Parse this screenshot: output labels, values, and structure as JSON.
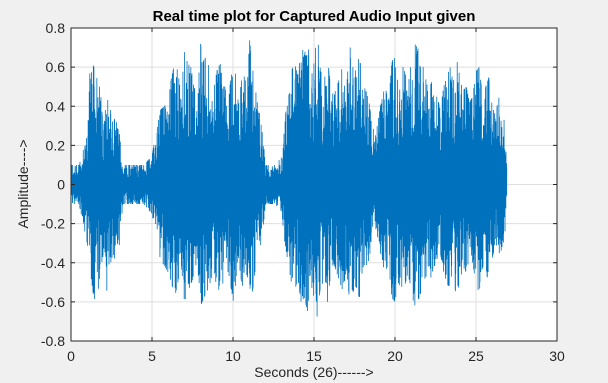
{
  "chart_data": {
    "type": "line",
    "title": "Real time plot for Captured Audio Input given",
    "xlabel": "Seconds (26)------>",
    "ylabel": "Amplitude---->",
    "xlim": [
      0,
      30
    ],
    "ylim": [
      -0.8,
      0.8
    ],
    "x_ticks": [
      0,
      5,
      10,
      15,
      20,
      25,
      30
    ],
    "y_ticks": [
      -0.8,
      -0.6,
      -0.4,
      -0.2,
      0,
      0.2,
      0.4,
      0.6,
      0.8
    ],
    "grid": true,
    "series": [
      {
        "color": "#0072BD",
        "envelope_x": [
          0.0,
          0.5,
          1.0,
          1.2,
          1.4,
          1.6,
          1.8,
          2.0,
          2.2,
          2.4,
          2.6,
          2.8,
          3.0,
          3.2,
          3.5,
          4.0,
          4.5,
          5.0,
          5.5,
          6.0,
          6.2,
          6.4,
          6.6,
          6.8,
          7.0,
          7.2,
          7.4,
          7.6,
          7.8,
          8.0,
          8.2,
          8.4,
          8.6,
          8.8,
          9.0,
          9.2,
          9.4,
          9.6,
          9.8,
          10.0,
          10.2,
          10.4,
          10.6,
          10.8,
          11.0,
          11.2,
          11.5,
          11.8,
          12.0,
          12.3,
          12.6,
          13.0,
          13.2,
          13.4,
          13.6,
          13.8,
          14.0,
          14.2,
          14.4,
          14.6,
          14.8,
          15.0,
          15.2,
          15.4,
          15.6,
          15.8,
          16.0,
          16.2,
          16.4,
          16.6,
          16.8,
          17.0,
          17.2,
          17.4,
          17.6,
          17.8,
          18.0,
          18.2,
          18.4,
          18.6,
          18.8,
          19.0,
          19.2,
          19.4,
          19.6,
          19.8,
          20.0,
          20.2,
          20.4,
          20.6,
          20.8,
          21.0,
          21.2,
          21.4,
          21.6,
          21.8,
          22.0,
          22.2,
          22.4,
          22.6,
          22.8,
          23.0,
          23.2,
          23.4,
          23.6,
          23.8,
          24.0,
          24.2,
          24.4,
          24.6,
          24.8,
          25.0,
          25.2,
          25.4,
          25.6,
          25.8,
          26.0,
          26.2,
          26.4,
          26.6,
          26.8,
          26.9
        ],
        "envelope_max": [
          0.1,
          0.1,
          0.25,
          0.68,
          0.6,
          0.62,
          0.5,
          0.28,
          0.45,
          0.4,
          0.3,
          0.38,
          0.25,
          0.1,
          0.1,
          0.1,
          0.1,
          0.15,
          0.38,
          0.42,
          0.55,
          0.62,
          0.58,
          0.45,
          0.68,
          0.62,
          0.6,
          0.5,
          0.42,
          0.72,
          0.62,
          0.68,
          0.55,
          0.48,
          0.58,
          0.62,
          0.55,
          0.45,
          0.5,
          0.62,
          0.55,
          0.45,
          0.58,
          0.52,
          0.76,
          0.6,
          0.42,
          0.3,
          0.1,
          0.1,
          0.1,
          0.14,
          0.35,
          0.42,
          0.58,
          0.62,
          0.56,
          0.72,
          0.66,
          0.75,
          0.55,
          0.62,
          0.78,
          0.58,
          0.55,
          0.68,
          0.52,
          0.45,
          0.5,
          0.55,
          0.62,
          0.48,
          0.72,
          0.6,
          0.58,
          0.66,
          0.55,
          0.48,
          0.42,
          0.3,
          0.25,
          0.35,
          0.45,
          0.5,
          0.42,
          0.62,
          0.68,
          0.55,
          0.62,
          0.58,
          0.5,
          0.62,
          0.72,
          0.7,
          0.65,
          0.58,
          0.5,
          0.55,
          0.48,
          0.45,
          0.38,
          0.5,
          0.55,
          0.6,
          0.52,
          0.65,
          0.55,
          0.48,
          0.5,
          0.42,
          0.45,
          0.58,
          0.6,
          0.45,
          0.5,
          0.55,
          0.4,
          0.35,
          0.45,
          0.35,
          0.32,
          0.1
        ],
        "envelope_min": [
          -0.1,
          -0.1,
          -0.3,
          -0.45,
          -0.58,
          -0.6,
          -0.45,
          -0.35,
          -0.55,
          -0.42,
          -0.35,
          -0.42,
          -0.3,
          -0.1,
          -0.1,
          -0.1,
          -0.1,
          -0.15,
          -0.38,
          -0.45,
          -0.5,
          -0.58,
          -0.5,
          -0.4,
          -0.6,
          -0.55,
          -0.52,
          -0.45,
          -0.4,
          -0.62,
          -0.58,
          -0.55,
          -0.5,
          -0.45,
          -0.52,
          -0.55,
          -0.5,
          -0.42,
          -0.48,
          -0.6,
          -0.5,
          -0.42,
          -0.55,
          -0.5,
          -0.62,
          -0.55,
          -0.38,
          -0.28,
          -0.1,
          -0.1,
          -0.1,
          -0.14,
          -0.3,
          -0.4,
          -0.5,
          -0.55,
          -0.48,
          -0.6,
          -0.58,
          -0.65,
          -0.5,
          -0.58,
          -0.68,
          -0.52,
          -0.5,
          -0.62,
          -0.48,
          -0.4,
          -0.45,
          -0.5,
          -0.55,
          -0.42,
          -0.6,
          -0.55,
          -0.52,
          -0.58,
          -0.5,
          -0.45,
          -0.38,
          -0.28,
          -0.22,
          -0.3,
          -0.4,
          -0.45,
          -0.4,
          -0.58,
          -0.6,
          -0.5,
          -0.55,
          -0.52,
          -0.45,
          -0.55,
          -0.62,
          -0.6,
          -0.55,
          -0.5,
          -0.45,
          -0.48,
          -0.42,
          -0.4,
          -0.35,
          -0.45,
          -0.5,
          -0.55,
          -0.48,
          -0.58,
          -0.5,
          -0.42,
          -0.45,
          -0.38,
          -0.4,
          -0.52,
          -0.55,
          -0.42,
          -0.45,
          -0.5,
          -0.38,
          -0.3,
          -0.4,
          -0.32,
          -0.28,
          -0.1
        ]
      }
    ]
  }
}
